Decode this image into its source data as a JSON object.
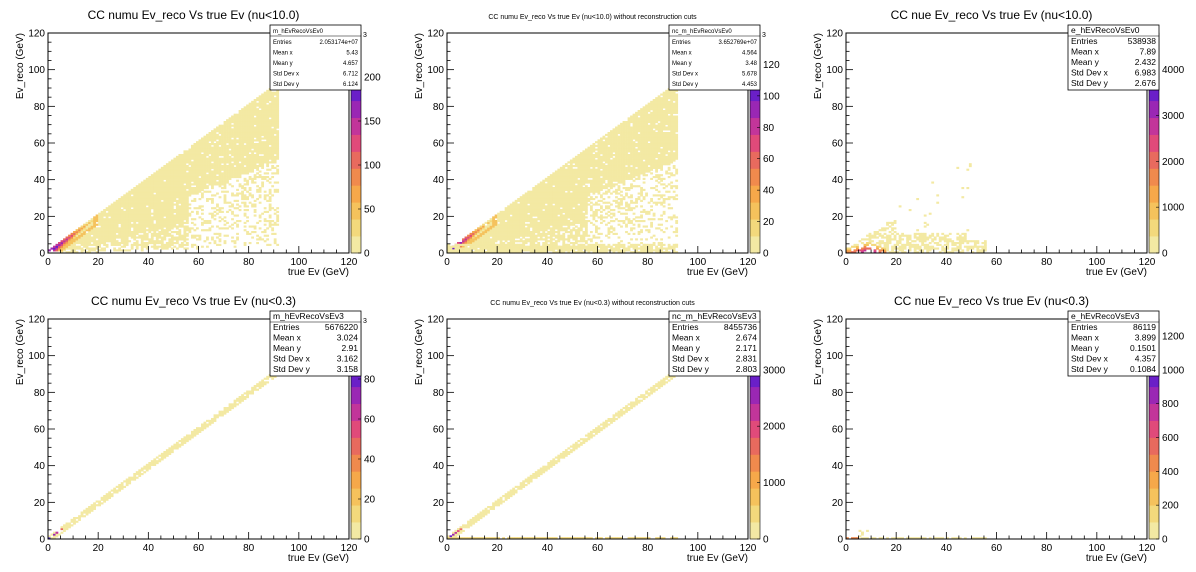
{
  "chart_data": [
    {
      "type": "heatmap",
      "title": "CC numu Ev_reco Vs true Ev (nu<10.0)",
      "xlabel": "true Ev (GeV)",
      "ylabel": "Ev_reco (GeV)",
      "xlim": [
        0,
        120
      ],
      "ylim": [
        0,
        120
      ],
      "x_ticks": [
        "0",
        "20",
        "40",
        "60",
        "80",
        "100",
        "120"
      ],
      "y_ticks": [
        "0",
        "20",
        "40",
        "60",
        "80",
        "100",
        "120"
      ],
      "z_ticks": [
        "0",
        "50",
        "100",
        "150",
        "200"
      ],
      "z_exponent": "3",
      "z_max": 250,
      "pattern": "diagonal-wide",
      "xmax_data": 92,
      "stats": {
        "name": "m_hEvRecoVsEv0",
        "rows": [
          {
            "label": "Entries",
            "value": "2.053174e+07"
          },
          {
            "label": "Mean x",
            "value": "5.43"
          },
          {
            "label": "Mean y",
            "value": "4.657"
          },
          {
            "label": "Std Dev x",
            "value": "6.712"
          },
          {
            "label": "Std Dev y",
            "value": "6.124"
          }
        ]
      }
    },
    {
      "type": "heatmap",
      "title": "CC numu Ev_reco Vs true Ev (nu<10.0) without reconstruction cuts",
      "xlabel": "true Ev (GeV)",
      "ylabel": "Ev_reco (GeV)",
      "xlim": [
        0,
        120
      ],
      "ylim": [
        0,
        120
      ],
      "x_ticks": [
        "0",
        "20",
        "40",
        "60",
        "80",
        "100",
        "120"
      ],
      "y_ticks": [
        "0",
        "20",
        "40",
        "60",
        "80",
        "100",
        "120"
      ],
      "z_ticks": [
        "0",
        "20",
        "40",
        "60",
        "80",
        "100",
        "120"
      ],
      "z_exponent": "3",
      "z_max": 140,
      "pattern": "diagonal-wide-floor",
      "xmax_data": 92,
      "stats": {
        "name": "nc_m_hEvRecoVsEv0",
        "rows": [
          {
            "label": "Entries",
            "value": "3.652769e+07"
          },
          {
            "label": "Mean x",
            "value": "4.564"
          },
          {
            "label": "Mean y",
            "value": "3.48"
          },
          {
            "label": "Std Dev x",
            "value": "5.678"
          },
          {
            "label": "Std Dev y",
            "value": "4.453"
          }
        ]
      }
    },
    {
      "type": "heatmap",
      "title": "CC nue Ev_reco Vs true Ev (nu<10.0)",
      "xlabel": "true Ev (GeV)",
      "ylabel": "Ev_reco (GeV)",
      "xlim": [
        0,
        120
      ],
      "ylim": [
        0,
        120
      ],
      "x_ticks": [
        "0",
        "20",
        "40",
        "60",
        "80",
        "100",
        "120"
      ],
      "y_ticks": [
        "0",
        "20",
        "40",
        "60",
        "80",
        "100",
        "120"
      ],
      "z_ticks": [
        "0",
        "1000",
        "2000",
        "3000",
        "4000"
      ],
      "z_exponent": "",
      "z_max": 4800,
      "pattern": "nue-wide",
      "xmax_data": 56,
      "stats": {
        "name": "e_hEvRecoVsEv0",
        "rows": [
          {
            "label": "Entries",
            "value": "538938"
          },
          {
            "label": "Mean x",
            "value": "7.89"
          },
          {
            "label": "Mean y",
            "value": "2.432"
          },
          {
            "label": "Std Dev x",
            "value": "6.983"
          },
          {
            "label": "Std Dev y",
            "value": "2.676"
          }
        ]
      }
    },
    {
      "type": "heatmap",
      "title": "CC numu Ev_reco Vs true Ev (nu<0.3)",
      "xlabel": "true Ev (GeV)",
      "ylabel": "Ev_reco (GeV)",
      "xlim": [
        0,
        120
      ],
      "ylim": [
        0,
        120
      ],
      "x_ticks": [
        "0",
        "20",
        "40",
        "60",
        "80",
        "100",
        "120"
      ],
      "y_ticks": [
        "0",
        "20",
        "40",
        "60",
        "80",
        "100",
        "120"
      ],
      "z_ticks": [
        "0",
        "20",
        "40",
        "60",
        "80"
      ],
      "z_exponent": "3",
      "z_max": 110,
      "pattern": "diagonal-narrow",
      "xmax_data": 92,
      "stats": {
        "name": "m_hEvRecoVsEv3",
        "rows": [
          {
            "label": "Entries",
            "value": "5676220"
          },
          {
            "label": "Mean x",
            "value": "3.024"
          },
          {
            "label": "Mean y",
            "value": "2.91"
          },
          {
            "label": "Std Dev x",
            "value": "3.162"
          },
          {
            "label": "Std Dev y",
            "value": "3.158"
          }
        ]
      }
    },
    {
      "type": "heatmap",
      "title": "CC numu Ev_reco Vs true Ev (nu<0.3) without reconstruction cuts",
      "xlabel": "true Ev (GeV)",
      "ylabel": "Ev_reco (GeV)",
      "xlim": [
        0,
        120
      ],
      "ylim": [
        0,
        120
      ],
      "x_ticks": [
        "0",
        "20",
        "40",
        "60",
        "80",
        "100",
        "120"
      ],
      "y_ticks": [
        "0",
        "20",
        "40",
        "60",
        "80",
        "100",
        "120"
      ],
      "z_ticks": [
        "0",
        "1000",
        "2000",
        "3000"
      ],
      "z_exponent": "",
      "z_max": 3900,
      "pattern": "diagonal-narrow-floor",
      "xmax_data": 92,
      "stats": {
        "name": "nc_m_hEvRecoVsEv3",
        "rows": [
          {
            "label": "Entries",
            "value": "8455736"
          },
          {
            "label": "Mean x",
            "value": "2.674"
          },
          {
            "label": "Mean y",
            "value": "2.171"
          },
          {
            "label": "Std Dev x",
            "value": "2.831"
          },
          {
            "label": "Std Dev y",
            "value": "2.803"
          }
        ]
      }
    },
    {
      "type": "heatmap",
      "title": "CC nue Ev_reco Vs true Ev (nu<0.3)",
      "xlabel": "true Ev (GeV)",
      "ylabel": "Ev_reco (GeV)",
      "xlim": [
        0,
        120
      ],
      "ylim": [
        0,
        120
      ],
      "x_ticks": [
        "0",
        "20",
        "40",
        "60",
        "80",
        "100",
        "120"
      ],
      "y_ticks": [
        "0",
        "20",
        "40",
        "60",
        "80",
        "100",
        "120"
      ],
      "z_ticks": [
        "0",
        "200",
        "400",
        "600",
        "800",
        "1000",
        "1200"
      ],
      "z_exponent": "",
      "z_max": 1300,
      "pattern": "nue-narrow",
      "xmax_data": 56,
      "stats": {
        "name": "e_hEvRecoVsEv3",
        "rows": [
          {
            "label": "Entries",
            "value": "86119"
          },
          {
            "label": "Mean x",
            "value": "3.899"
          },
          {
            "label": "Mean y",
            "value": "0.1501"
          },
          {
            "label": "Std Dev x",
            "value": "4.357"
          },
          {
            "label": "Std Dev y",
            "value": "0.1084"
          }
        ]
      }
    }
  ],
  "palette": [
    "#f3e9a3",
    "#f3d97c",
    "#f5c25c",
    "#f6a84a",
    "#f08a4d",
    "#e86a5e",
    "#e04a7a",
    "#c2359a",
    "#9a27b4",
    "#6a1fc8",
    "#3a17d8",
    "#1a0fe8",
    "#0000ff"
  ]
}
